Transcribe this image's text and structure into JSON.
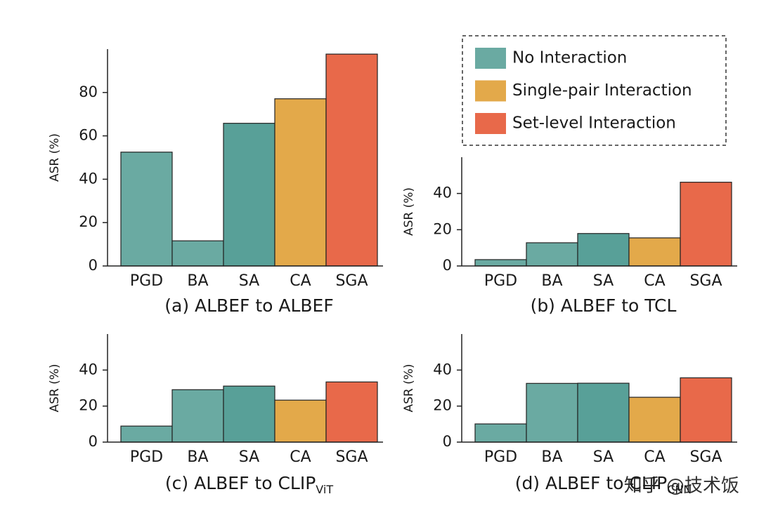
{
  "chart_data": [
    {
      "type": "bar",
      "title": "(a) ALBEF to ALBEF",
      "ylabel": "ASR (%)",
      "categories": [
        "PGD",
        "BA",
        "SA",
        "CA",
        "SGA"
      ],
      "values": [
        52.5,
        11.6,
        65.8,
        77.1,
        97.7
      ],
      "colors": [
        "#6aaaa2",
        "#6aaaa2",
        "#58a098",
        "#e3a94a",
        "#e8694a"
      ],
      "ylim": [
        0,
        100
      ],
      "yticks": [
        0,
        20,
        40,
        60,
        80
      ]
    },
    {
      "type": "bar",
      "title": "(b) ALBEF to TCL",
      "ylabel": "ASR (%)",
      "categories": [
        "PGD",
        "BA",
        "SA",
        "CA",
        "SGA"
      ],
      "values": [
        3.5,
        12.8,
        17.9,
        15.5,
        46.2
      ],
      "colors": [
        "#6aaaa2",
        "#6aaaa2",
        "#58a098",
        "#e3a94a",
        "#e8694a"
      ],
      "ylim": [
        0,
        60
      ],
      "yticks": [
        0,
        20,
        40
      ]
    },
    {
      "type": "bar",
      "title": "(c) ALBEF to CLIP",
      "title_sub": "ViT",
      "ylabel": "ASR (%)",
      "categories": [
        "PGD",
        "BA",
        "SA",
        "CA",
        "SGA"
      ],
      "values": [
        8.9,
        29.1,
        31.1,
        23.3,
        33.4
      ],
      "colors": [
        "#6aaaa2",
        "#6aaaa2",
        "#58a098",
        "#e3a94a",
        "#e8694a"
      ],
      "ylim": [
        0,
        60
      ],
      "yticks": [
        0,
        20,
        40
      ]
    },
    {
      "type": "bar",
      "title": "(d) ALBEF to CLIP",
      "title_sub": "CNN",
      "ylabel": "ASR (%)",
      "categories": [
        "PGD",
        "BA",
        "SA",
        "CA",
        "SGA"
      ],
      "values": [
        10.1,
        32.6,
        32.7,
        24.9,
        35.7
      ],
      "colors": [
        "#6aaaa2",
        "#6aaaa2",
        "#58a098",
        "#e3a94a",
        "#e8694a"
      ],
      "ylim": [
        0,
        60
      ],
      "yticks": [
        0,
        20,
        40
      ]
    }
  ],
  "legend": [
    {
      "name": "No Interaction",
      "color": "#6aaaa2"
    },
    {
      "name": "Single-pair Interaction",
      "color": "#e3a94a"
    },
    {
      "name": "Set-level Interaction",
      "color": "#e8694a"
    }
  ],
  "watermark": "知乎 @技术饭"
}
